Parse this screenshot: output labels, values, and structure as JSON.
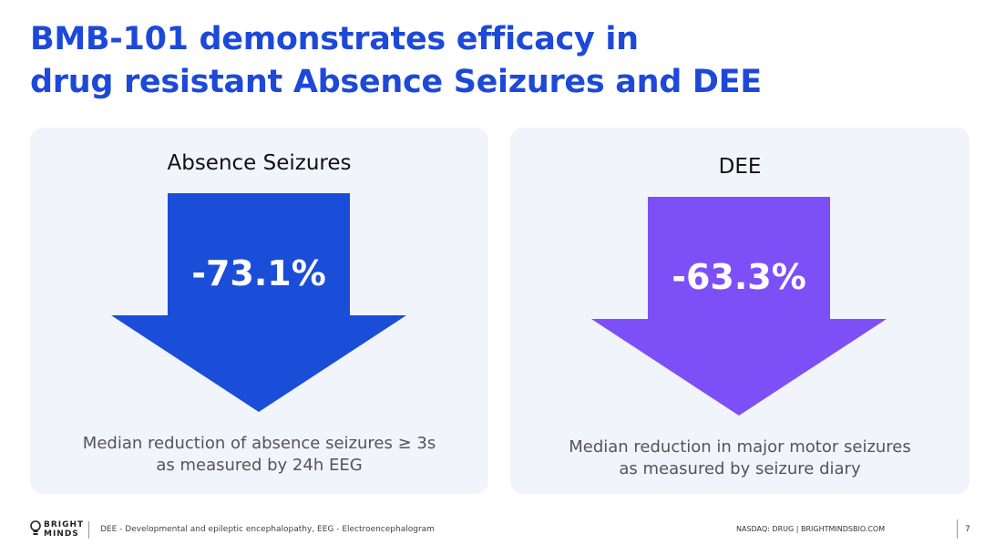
{
  "slide": {
    "title_line1": "BMB-101 demonstrates efficacy in",
    "title_line2": "drug resistant Absence Seizures and DEE",
    "title_color": "#1d49d8",
    "page_number": "7"
  },
  "panels": [
    {
      "heading": "Absence Seizures",
      "value": "-73.1%",
      "arrow_color": "#1a4ed8",
      "caption_line1": "Median reduction of absence seizures ≥ 3s",
      "caption_line2": "as measured by 24h EEG"
    },
    {
      "heading": "DEE",
      "value": "-63.3%",
      "arrow_color": "#7c50f6",
      "caption_line1": "Median reduction in major motor seizures",
      "caption_line2": "as measured by seizure diary"
    }
  ],
  "footer": {
    "logo_line1": "BRIGHT",
    "logo_line2": "MINDS",
    "note": "DEE - Developmental and epileptic encephalopathy, EEG - Electroencephalogram",
    "right_text": "NASDAQ: DRUG | BRIGHTMINDSBIO.COM"
  },
  "icons": {
    "logo": "lightbulb-icon",
    "arrow": "down-arrow-icon"
  }
}
